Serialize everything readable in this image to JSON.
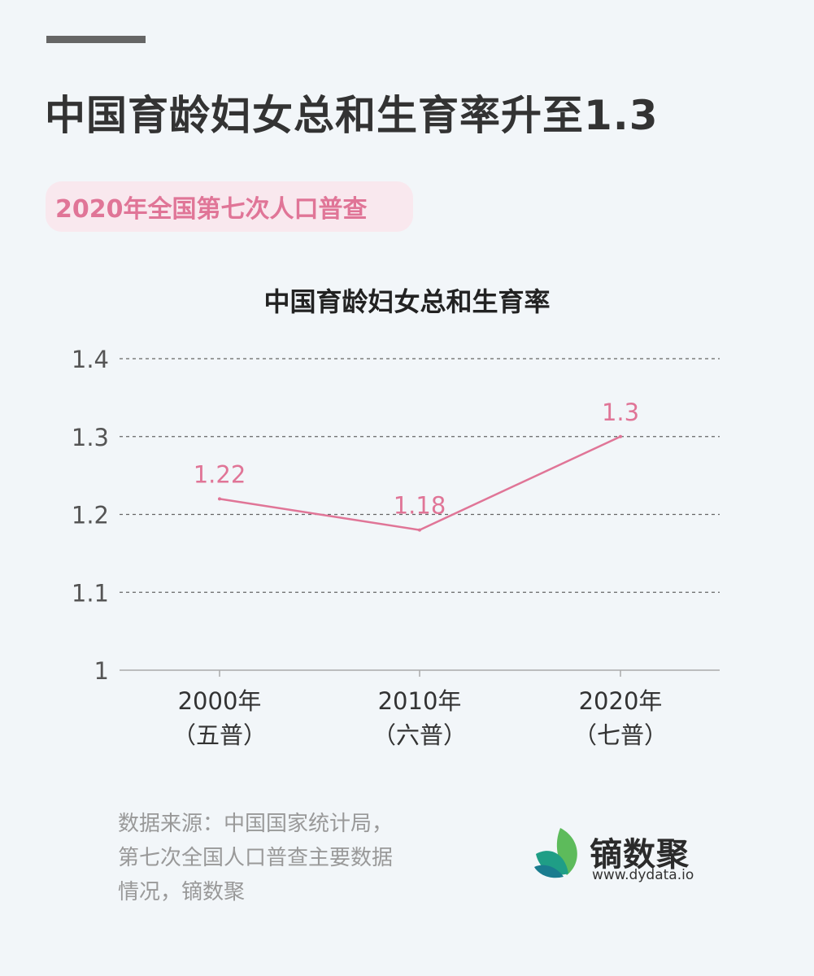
{
  "header": {
    "title": "中国育龄妇女总和生育率升至1.3",
    "subtitle": "2020年全国第七次人口普查"
  },
  "chart_data": {
    "type": "line",
    "title": "中国育龄妇女总和生育率",
    "categories": [
      "2000年",
      "2010年",
      "2020年"
    ],
    "category_sublabels": [
      "（五普）",
      "（六普）",
      "（七普）"
    ],
    "values": [
      1.22,
      1.18,
      1.3
    ],
    "data_labels": [
      "1.22",
      "1.18",
      "1.3"
    ],
    "ylim": [
      1,
      1.4
    ],
    "yticks": [
      1,
      1.1,
      1.2,
      1.3,
      1.4
    ],
    "ytick_labels": [
      "1",
      "1.1",
      "1.2",
      "1.3",
      "1.4"
    ],
    "grid": "horizontal-dashed",
    "line_color": "#e07597",
    "xlabel": "",
    "ylabel": ""
  },
  "footer": {
    "source_lines": [
      "数据来源：中国国家统计局，",
      "第七次全国人口普查主要数据",
      "情况，镝数聚"
    ],
    "logo_name": "镝数聚",
    "logo_url": "www.dydata.io",
    "logo_colors": [
      "#5dbb5b",
      "#1f9e86",
      "#1a7c8f"
    ]
  }
}
